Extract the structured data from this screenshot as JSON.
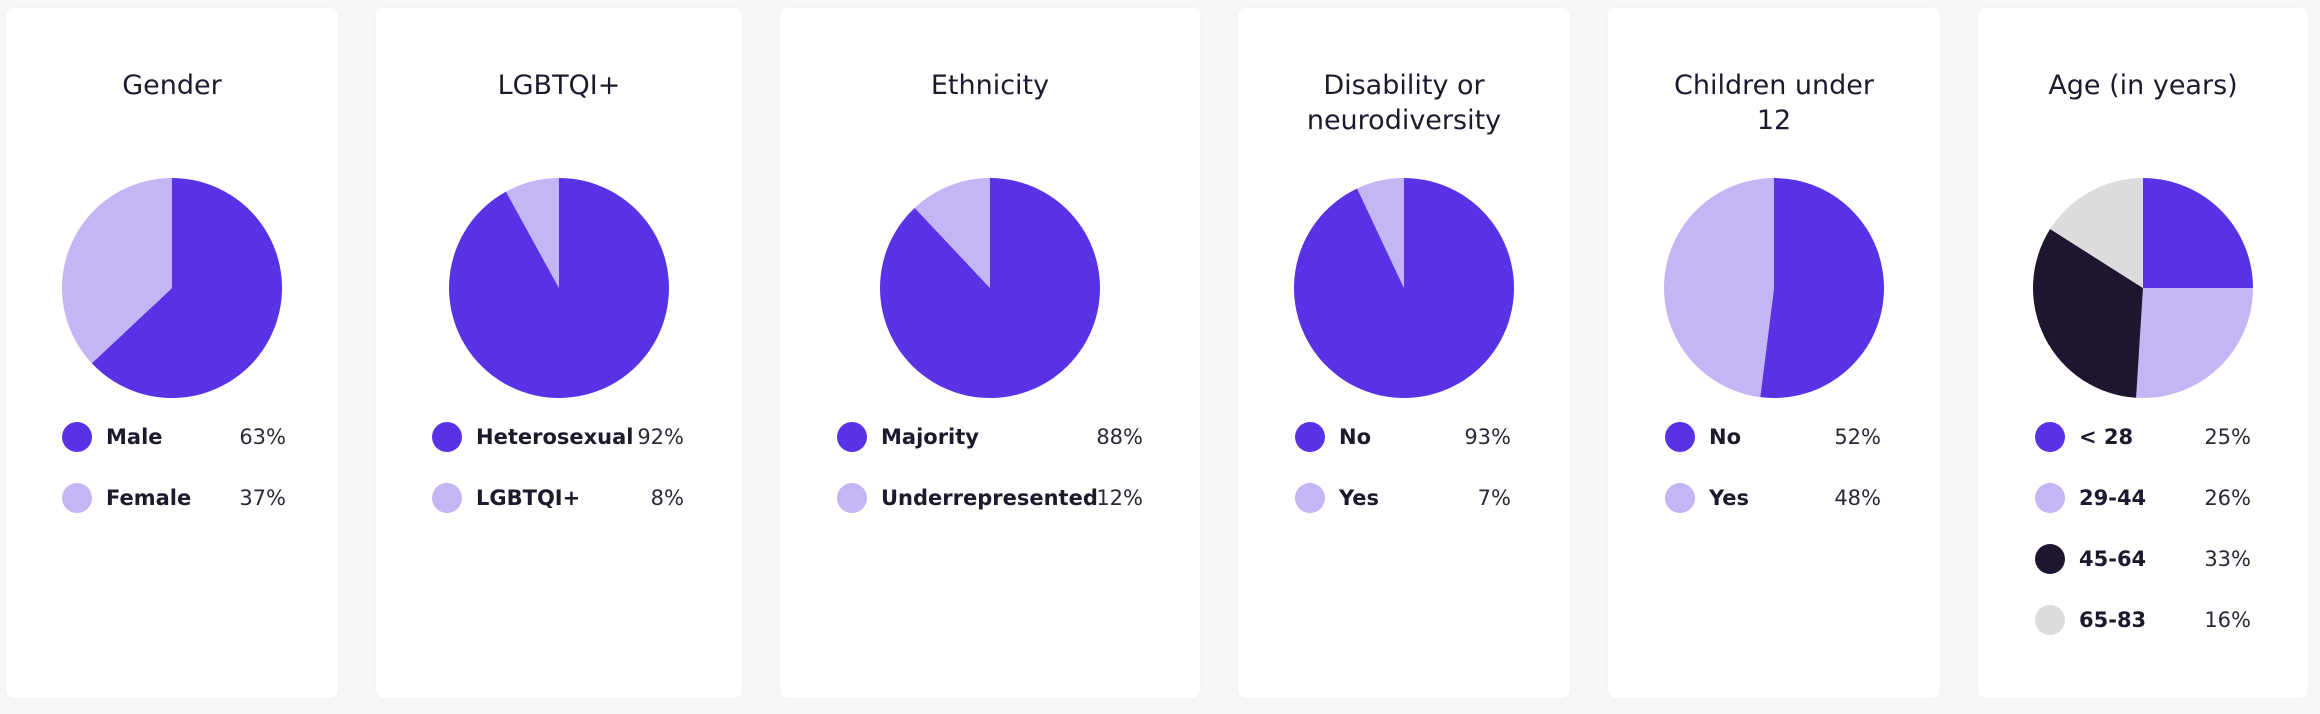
{
  "colors": {
    "primary": "#5a32e6",
    "light": "#c4b5f4",
    "dark": "#1e1630",
    "gray": "#dcdcdc"
  },
  "chart_data": [
    {
      "type": "pie",
      "title": "Gender",
      "slices": [
        {
          "label": "Male",
          "value": 63,
          "value_label": "63%",
          "color": "#5a32e6"
        },
        {
          "label": "Female",
          "value": 37,
          "value_label": "37%",
          "color": "#c4b5f4"
        }
      ]
    },
    {
      "type": "pie",
      "title": "LGBTQI+",
      "slices": [
        {
          "label": "Heterosexual",
          "value": 92,
          "value_label": "92%",
          "color": "#5a32e6"
        },
        {
          "label": "LGBTQI+",
          "value": 8,
          "value_label": "8%",
          "color": "#c4b5f4"
        }
      ]
    },
    {
      "type": "pie",
      "title": "Ethnicity",
      "slices": [
        {
          "label": "Majority",
          "value": 88,
          "value_label": "88%",
          "color": "#5a32e6"
        },
        {
          "label": "Underrepresented",
          "value": 12,
          "value_label": "12%",
          "color": "#c4b5f4"
        }
      ]
    },
    {
      "type": "pie",
      "title": "Disability or neurodiversity",
      "slices": [
        {
          "label": "No",
          "value": 93,
          "value_label": "93%",
          "color": "#5a32e6"
        },
        {
          "label": "Yes",
          "value": 7,
          "value_label": "7%",
          "color": "#c4b5f4"
        }
      ]
    },
    {
      "type": "pie",
      "title": "Children under 12",
      "slices": [
        {
          "label": "No",
          "value": 52,
          "value_label": "52%",
          "color": "#5a32e6"
        },
        {
          "label": "Yes",
          "value": 48,
          "value_label": "48%",
          "color": "#c4b5f4"
        }
      ]
    },
    {
      "type": "pie",
      "title": "Age (in years)",
      "slices": [
        {
          "label": "< 28",
          "value": 25,
          "value_label": "25%",
          "color": "#5a32e6"
        },
        {
          "label": "29-44",
          "value": 26,
          "value_label": "26%",
          "color": "#c4b5f4"
        },
        {
          "label": "45-64",
          "value": 33,
          "value_label": "33%",
          "color": "#1e1630"
        },
        {
          "label": "65-83",
          "value": 16,
          "value_label": "16%",
          "color": "#dcdcdc"
        }
      ]
    }
  ]
}
